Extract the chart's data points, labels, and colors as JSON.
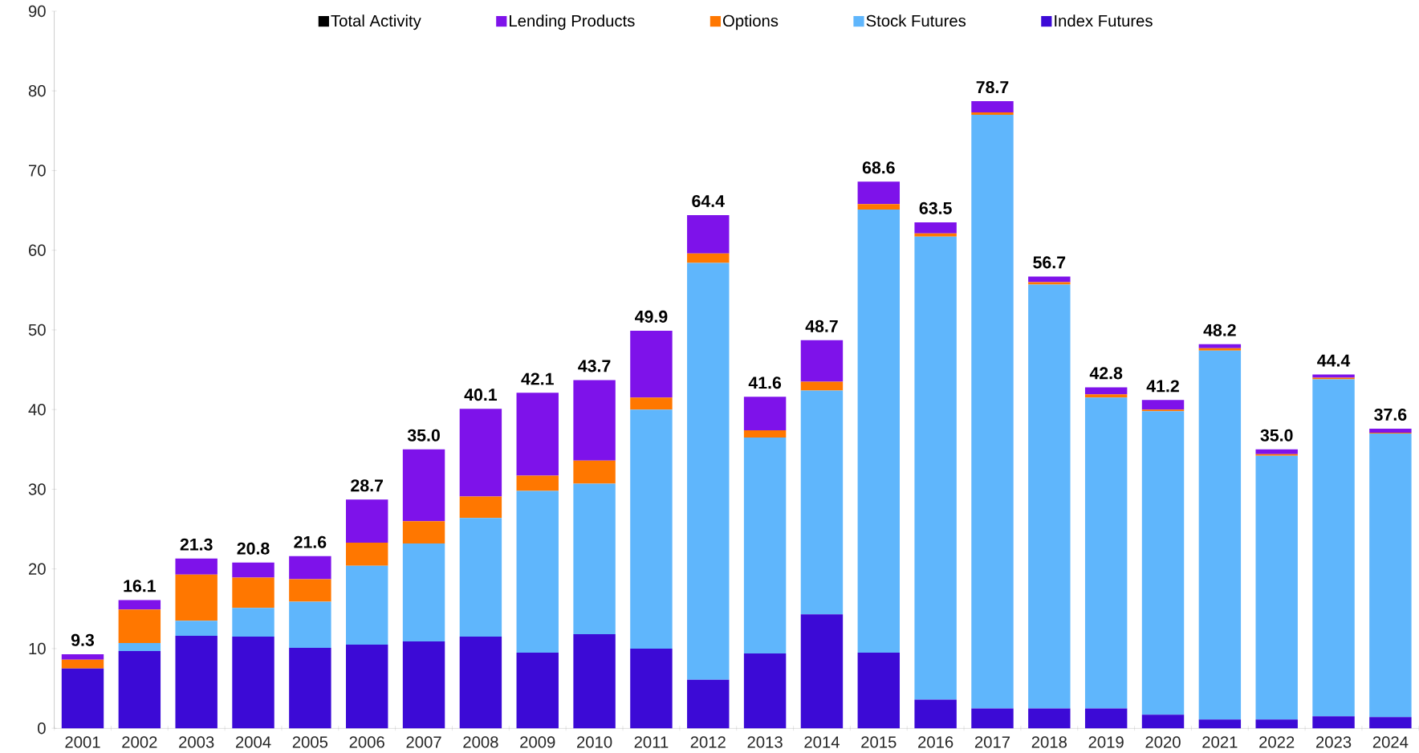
{
  "chart_data": {
    "type": "bar",
    "stacked": true,
    "categories": [
      "2001",
      "2002",
      "2003",
      "2004",
      "2005",
      "2006",
      "2007",
      "2008",
      "2009",
      "2010",
      "2011",
      "2012",
      "2013",
      "2014",
      "2015",
      "2016",
      "2017",
      "2018",
      "2019",
      "2020",
      "2021",
      "2022",
      "2023",
      "2024"
    ],
    "series": [
      {
        "name": "Index Futures",
        "color": "#3c0ad6",
        "values": [
          7.5,
          9.7,
          11.6,
          11.5,
          10.1,
          10.5,
          10.9,
          11.5,
          9.5,
          11.8,
          10.0,
          6.1,
          9.4,
          14.3,
          9.5,
          3.6,
          2.5,
          2.5,
          2.5,
          1.7,
          1.1,
          1.1,
          1.5,
          1.4
        ]
      },
      {
        "name": "Stock Futures",
        "color": "#5fb6fc",
        "values": [
          0,
          1.0,
          1.9,
          3.6,
          5.8,
          9.9,
          12.3,
          14.9,
          20.3,
          18.9,
          30.0,
          52.3,
          27.1,
          28.1,
          55.6,
          58.1,
          74.5,
          53.2,
          39.0,
          38.1,
          46.3,
          33.1,
          42.3,
          35.6
        ]
      },
      {
        "name": "Options",
        "color": "#ff7700",
        "values": [
          1.1,
          4.2,
          5.8,
          3.8,
          2.8,
          2.9,
          2.8,
          2.7,
          1.9,
          2.9,
          1.5,
          1.2,
          0.9,
          1.1,
          0.7,
          0.4,
          0.3,
          0.3,
          0.4,
          0.2,
          0.3,
          0.2,
          0.2,
          0.1
        ]
      },
      {
        "name": "Lending Products",
        "color": "#7e12ea",
        "values": [
          0.7,
          1.2,
          2.0,
          1.9,
          2.9,
          5.4,
          9.0,
          11.0,
          10.4,
          10.1,
          8.4,
          4.8,
          4.2,
          5.2,
          2.8,
          1.4,
          1.4,
          0.7,
          0.9,
          1.2,
          0.5,
          0.6,
          0.4,
          0.5
        ]
      },
      {
        "name": "Total Activity",
        "color": "#000000",
        "values": [
          null,
          null,
          null,
          null,
          null,
          null,
          null,
          null,
          null,
          null,
          null,
          null,
          null,
          null,
          null,
          null,
          null,
          null,
          null,
          null,
          null,
          null,
          null,
          null
        ]
      }
    ],
    "totals": [
      "9.3",
      "16.1",
      "21.3",
      "20.8",
      "21.6",
      "28.7",
      "35.0",
      "40.1",
      "42.1",
      "43.7",
      "49.9",
      "64.4",
      "41.6",
      "48.7",
      "68.6",
      "63.5",
      "78.7",
      "56.7",
      "42.8",
      "41.2",
      "48.2",
      "35.0",
      "44.4",
      "37.6"
    ],
    "ylim": [
      0,
      90
    ],
    "yticks": [
      0,
      10,
      20,
      30,
      40,
      50,
      60,
      70,
      80,
      90
    ],
    "legend": "top",
    "grid": false
  }
}
